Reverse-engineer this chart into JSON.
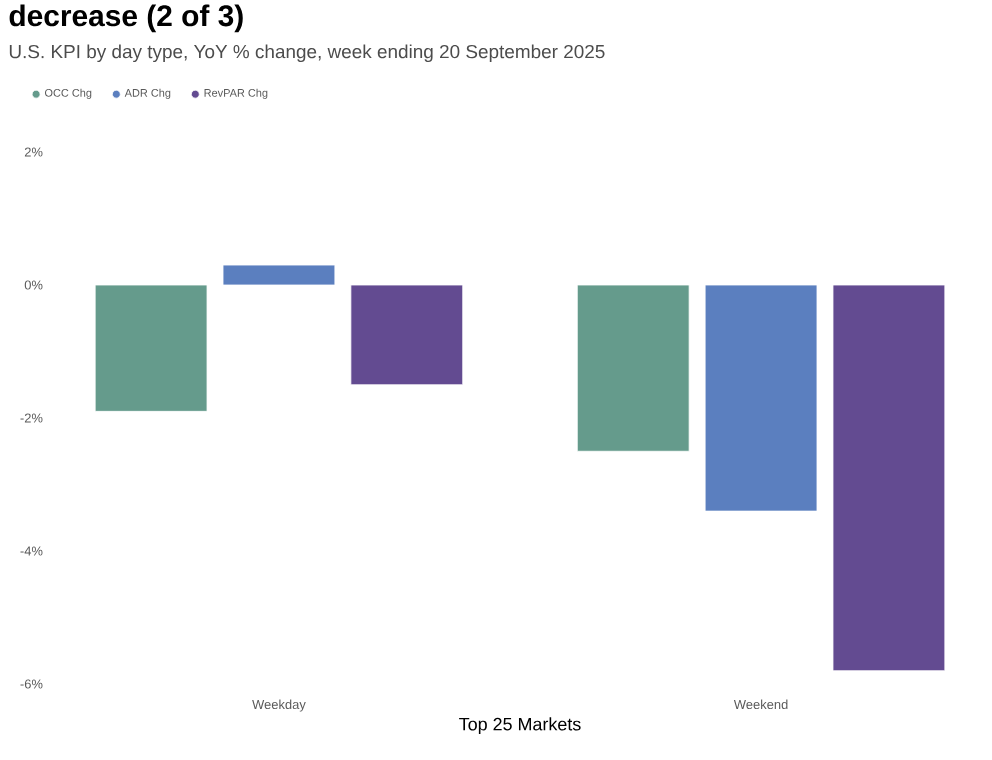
{
  "chart_data": {
    "type": "bar",
    "title": "decrease (2 of 3)",
    "subtitle": "U.S. KPI by day type, YoY % change, week ending 20 September 2025",
    "xlabel": "Top 25 Markets",
    "categories": [
      "Weekday",
      "Weekend"
    ],
    "series": [
      {
        "name": "OCC Chg",
        "color": "#659b8c",
        "values": [
          -1.9,
          -2.5
        ]
      },
      {
        "name": "ADR Chg",
        "color": "#5b7fbf",
        "values": [
          0.3,
          -3.4
        ]
      },
      {
        "name": "RevPAR Chg",
        "color": "#634b91",
        "values": [
          -1.5,
          -5.8
        ]
      }
    ],
    "ylim": [
      -6,
      2
    ],
    "yticks": [
      {
        "value": -6,
        "label": "-6%"
      },
      {
        "value": -4,
        "label": "-4%"
      },
      {
        "value": -2,
        "label": "-2%"
      },
      {
        "value": 0,
        "label": "0%"
      },
      {
        "value": 2,
        "label": "2%"
      }
    ],
    "legend": "top left"
  }
}
